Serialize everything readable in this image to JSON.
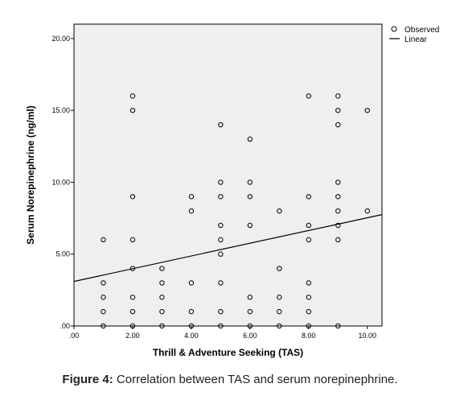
{
  "chart_data": {
    "type": "scatter",
    "xlabel": "Thrill & Adventure Seeking (TAS)",
    "ylabel": "Serum Norepinephrine (ng/ml)",
    "xlim": [
      0,
      10.5
    ],
    "ylim": [
      0,
      21
    ],
    "x_ticks": [
      0,
      2,
      4,
      6,
      8,
      10
    ],
    "x_tick_labels": [
      ".00",
      "2.00",
      "4.00",
      "6.00",
      "8.00",
      "10.00"
    ],
    "y_ticks": [
      0,
      5,
      10,
      15,
      20
    ],
    "y_tick_labels": [
      ".00",
      "5.00",
      "10.00",
      "15.00",
      "20.00"
    ],
    "grid": false,
    "legend_position": "top-right",
    "legend": [
      "Observed",
      "Linear"
    ],
    "series": [
      {
        "name": "Observed",
        "points": [
          [
            1,
            6
          ],
          [
            1,
            3
          ],
          [
            1,
            2
          ],
          [
            1,
            1
          ],
          [
            1,
            0
          ],
          [
            2,
            16
          ],
          [
            2,
            15
          ],
          [
            2,
            9
          ],
          [
            2,
            6
          ],
          [
            2,
            4
          ],
          [
            2,
            2
          ],
          [
            2,
            1
          ],
          [
            2,
            0
          ],
          [
            3,
            4
          ],
          [
            3,
            3
          ],
          [
            3,
            2
          ],
          [
            3,
            1
          ],
          [
            3,
            0
          ],
          [
            4,
            9
          ],
          [
            4,
            8
          ],
          [
            4,
            3
          ],
          [
            4,
            1
          ],
          [
            4,
            0
          ],
          [
            5,
            14
          ],
          [
            5,
            10
          ],
          [
            5,
            9
          ],
          [
            5,
            7
          ],
          [
            5,
            6
          ],
          [
            5,
            5
          ],
          [
            5,
            3
          ],
          [
            5,
            1
          ],
          [
            5,
            0
          ],
          [
            6,
            13
          ],
          [
            6,
            10
          ],
          [
            6,
            9
          ],
          [
            6,
            7
          ],
          [
            6,
            2
          ],
          [
            6,
            1
          ],
          [
            6,
            0
          ],
          [
            7,
            8
          ],
          [
            7,
            4
          ],
          [
            7,
            2
          ],
          [
            7,
            1
          ],
          [
            7,
            0
          ],
          [
            8,
            16
          ],
          [
            8,
            9
          ],
          [
            8,
            7
          ],
          [
            8,
            6
          ],
          [
            8,
            3
          ],
          [
            8,
            2
          ],
          [
            8,
            1
          ],
          [
            8,
            0
          ],
          [
            9,
            16
          ],
          [
            9,
            15
          ],
          [
            9,
            14
          ],
          [
            9,
            10
          ],
          [
            9,
            9
          ],
          [
            9,
            8
          ],
          [
            9,
            7
          ],
          [
            9,
            6
          ],
          [
            9,
            0
          ],
          [
            10,
            15
          ],
          [
            10,
            8
          ]
        ]
      },
      {
        "name": "Linear",
        "line": [
          [
            0,
            3.1
          ],
          [
            10.5,
            7.75
          ]
        ]
      }
    ],
    "colors": {
      "plot_background": "#efefef",
      "points": "#000000",
      "line": "#000000"
    }
  },
  "caption": {
    "label": "Figure 4:",
    "text": " Correlation between TAS and serum norepinephrine."
  }
}
